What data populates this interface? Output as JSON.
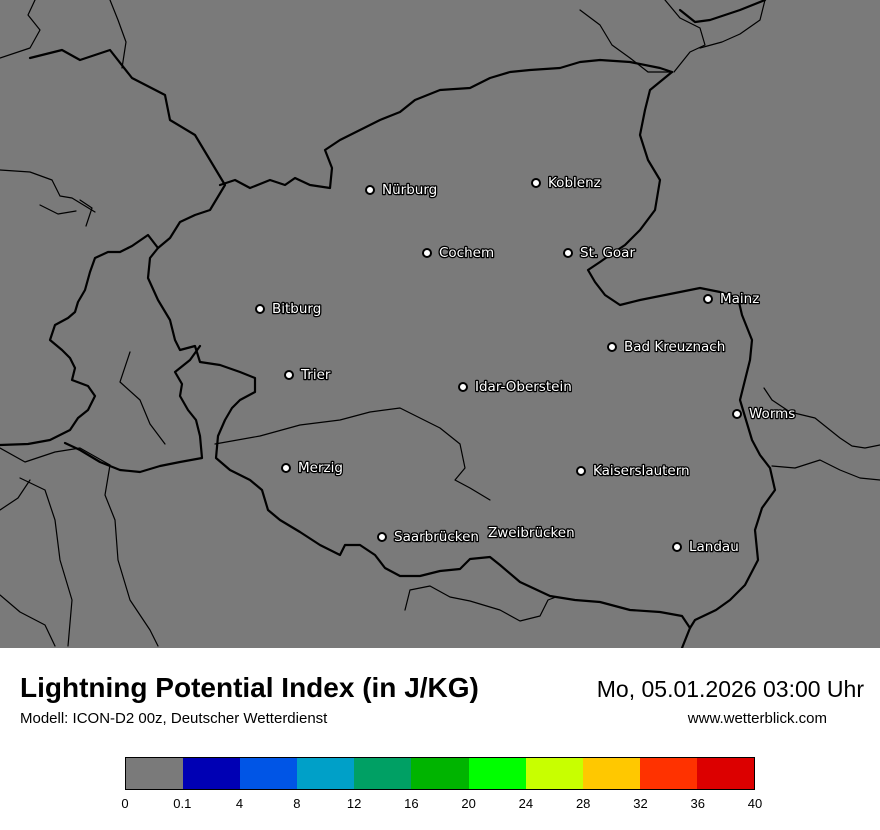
{
  "title": "Lightning Potential Index (in J/KG)",
  "subtitle": "Modell: ICON-D2 00z, Deutscher Wetterdienst",
  "datetime": "Mo, 05.01.2026 03:00 Uhr",
  "website": "www.wetterblick.com",
  "map": {
    "background_color": "#7a7a7a",
    "border_color": "#000000",
    "cities": [
      {
        "name": "Nürburg"
      },
      {
        "name": "Koblenz"
      },
      {
        "name": "Cochem"
      },
      {
        "name": "St. Goar"
      },
      {
        "name": "Mainz"
      },
      {
        "name": "Bitburg"
      },
      {
        "name": "Bad Kreuznach"
      },
      {
        "name": "Trier"
      },
      {
        "name": "Idar-Oberstein"
      },
      {
        "name": "Worms"
      },
      {
        "name": "Merzig"
      },
      {
        "name": "Kaiserslautern"
      },
      {
        "name": "Saarbrücken"
      },
      {
        "name": "Zweibrücken"
      },
      {
        "name": "Landau"
      }
    ]
  },
  "legend": {
    "colors": [
      "#7a7a7a",
      "#0000b4",
      "#0055e6",
      "#00a0c8",
      "#00a064",
      "#00b400",
      "#00ff00",
      "#c8ff00",
      "#ffc800",
      "#ff3200",
      "#dc0000"
    ],
    "ticks": [
      "0",
      "0.1",
      "4",
      "8",
      "12",
      "16",
      "20",
      "24",
      "28",
      "32",
      "36",
      "40"
    ]
  }
}
